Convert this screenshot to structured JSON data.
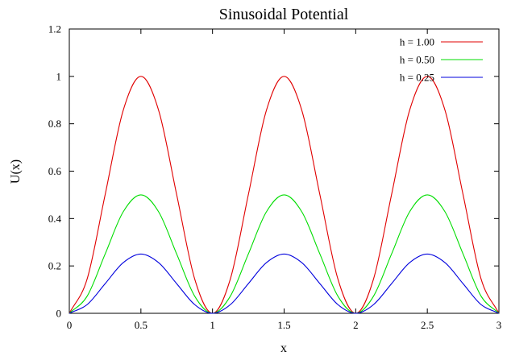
{
  "chart_data": {
    "type": "line",
    "title": "Sinusoidal Potential",
    "xlabel": "x",
    "ylabel": "U(x)",
    "xlim": [
      0,
      3
    ],
    "ylim": [
      0,
      1.2
    ],
    "xticks": [
      0,
      0.5,
      1,
      1.5,
      2,
      2.5,
      3
    ],
    "xtick_labels": [
      "0",
      "0.5",
      "1",
      "1.5",
      "2",
      "2.5",
      "3"
    ],
    "yticks": [
      0,
      0.2,
      0.4,
      0.6,
      0.8,
      1,
      1.2
    ],
    "ytick_labels": [
      "0",
      "0.2",
      "0.4",
      "0.6",
      "0.8",
      "1",
      "1.2"
    ],
    "grid": false,
    "legend_position": "top-right",
    "x": [
      0,
      0.125,
      0.25,
      0.375,
      0.5,
      0.625,
      0.75,
      0.875,
      1,
      1.125,
      1.25,
      1.375,
      1.5,
      1.625,
      1.75,
      1.875,
      2,
      2.125,
      2.25,
      2.375,
      2.5,
      2.625,
      2.75,
      2.875,
      3
    ],
    "series": [
      {
        "name": "h = 1.00",
        "color": "#e00000",
        "values": [
          0,
          0.146,
          0.5,
          0.854,
          1,
          0.854,
          0.5,
          0.146,
          0,
          0.146,
          0.5,
          0.854,
          1,
          0.854,
          0.5,
          0.146,
          0,
          0.146,
          0.5,
          0.854,
          1,
          0.854,
          0.5,
          0.146,
          0
        ]
      },
      {
        "name": "h = 0.50",
        "color": "#00dd00",
        "values": [
          0,
          0.073,
          0.25,
          0.427,
          0.5,
          0.427,
          0.25,
          0.073,
          0,
          0.073,
          0.25,
          0.427,
          0.5,
          0.427,
          0.25,
          0.073,
          0,
          0.073,
          0.25,
          0.427,
          0.5,
          0.427,
          0.25,
          0.073,
          0
        ]
      },
      {
        "name": "h = 0.25",
        "color": "#0000dd",
        "values": [
          0,
          0.037,
          0.125,
          0.213,
          0.25,
          0.213,
          0.125,
          0.037,
          0,
          0.037,
          0.125,
          0.213,
          0.25,
          0.213,
          0.125,
          0.037,
          0,
          0.037,
          0.125,
          0.213,
          0.25,
          0.213,
          0.125,
          0.037,
          0
        ]
      }
    ]
  }
}
